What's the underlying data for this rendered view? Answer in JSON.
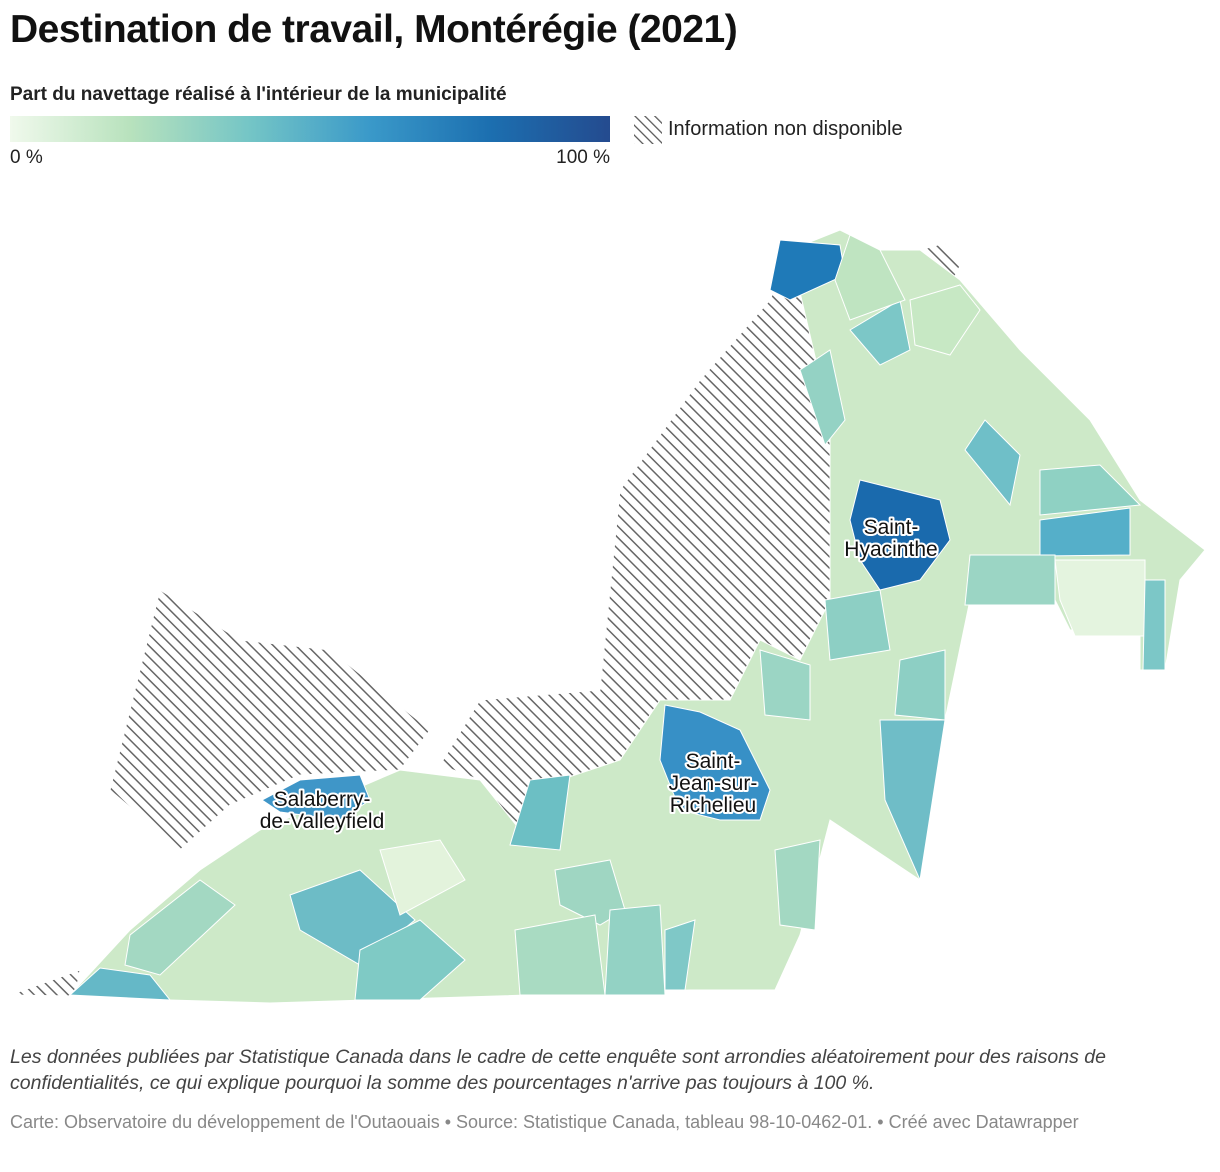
{
  "header": {
    "title": "Destination de travail, Montérégie (2021)"
  },
  "legend": {
    "title": "Part du navettage réalisé à l'intérieur de la municipalité",
    "min_label": "0 %",
    "max_label": "100 %",
    "na_label": "Information non disponible"
  },
  "map": {
    "labels": [
      "Saint-Hyacinthe",
      "Saint-Jean-sur-Richelieu",
      "Salaberry-de-Valleyfield"
    ]
  },
  "footer": {
    "note": "Les données publiées par Statistique Canada dans le cadre de cette enquête sont arrondies aléatoirement pour des raisons de confidentialités, ce qui explique pourquoi la somme des pourcentages n'arrive pas toujours à 100 %.",
    "credit": "Carte: Observatoire du développement de l'Outaouais • Source: Statistique Canada, tableau 98-10-0462-01. • Créé avec Datawrapper"
  }
}
